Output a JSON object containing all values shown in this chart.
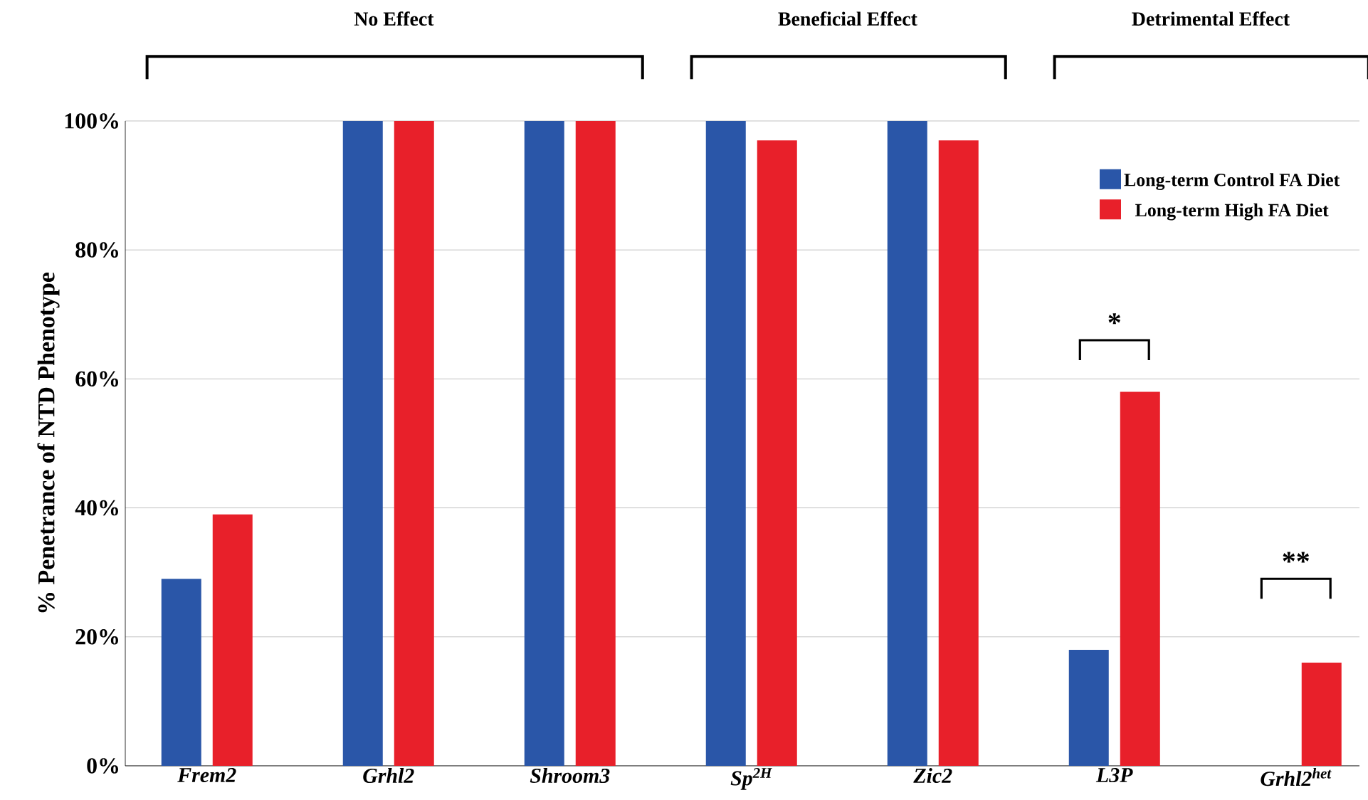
{
  "chart_data": {
    "type": "bar",
    "ylabel": "% Penetrance of NTD Phenotype",
    "categories": [
      "Frem2",
      "Grhl2",
      "Shroom3",
      "Sp$^{2H}$",
      "Zic2",
      "L3P",
      "Grhl2$^{het}$"
    ],
    "series": [
      {
        "name": "Long-term Control FA Diet",
        "color": "#2a56a8",
        "values": [
          29,
          100,
          100,
          100,
          100,
          18,
          0
        ]
      },
      {
        "name": "Long-term High FA Diet",
        "color": "#e8202a",
        "values": [
          39,
          100,
          100,
          97,
          97,
          58,
          16
        ]
      }
    ],
    "ylim": [
      0,
      100
    ],
    "yticks": [
      {
        "value": 0,
        "label": "0%"
      },
      {
        "value": 20,
        "label": "20%"
      },
      {
        "value": 40,
        "label": "40%"
      },
      {
        "value": 60,
        "label": "60%"
      },
      {
        "value": 80,
        "label": "80%"
      },
      {
        "value": 100,
        "label": "100%"
      }
    ],
    "grid": "y",
    "legend": "top right",
    "annotations": [
      "No Effect",
      "Beneficial Effect",
      "Detrimental Effect",
      "*",
      "**"
    ]
  }
}
